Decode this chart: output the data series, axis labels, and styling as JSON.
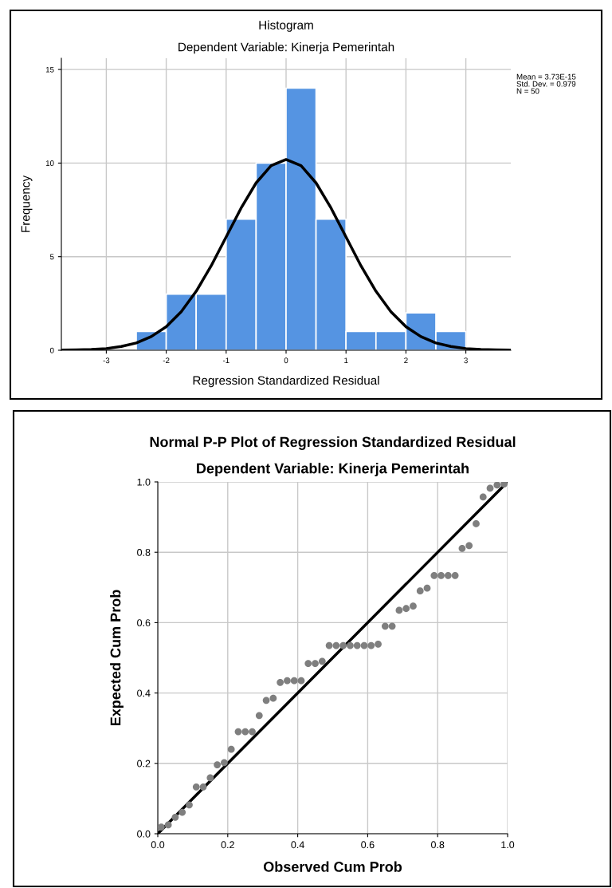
{
  "chart_data": [
    {
      "type": "histogram",
      "title": "Histogram",
      "subtitle": "Dependent Variable: Kinerja Pemerintah",
      "xlabel": "Regression Standardized Residual",
      "ylabel": "Frequency",
      "bins": [
        -2.5,
        -2.0,
        -1.5,
        -1.0,
        -0.5,
        0.0,
        0.5,
        1.0,
        1.5,
        2.0,
        2.5,
        3.0
      ],
      "values": [
        1,
        3,
        3,
        7,
        10,
        14,
        7,
        1,
        1,
        2,
        1
      ],
      "color": "#5594e2",
      "series": [
        {
          "type": "line",
          "color": "#000000",
          "x": [
            -3.75,
            -3.5,
            -3.25,
            -3.0,
            -2.75,
            -2.5,
            -2.25,
            -2.0,
            -1.75,
            -1.5,
            -1.25,
            -1.0,
            -0.75,
            -0.5,
            -0.25,
            0.0,
            0.25,
            0.5,
            0.75,
            1.0,
            1.25,
            1.5,
            1.75,
            2.0,
            2.25,
            2.5,
            2.75,
            3.0,
            3.25,
            3.5,
            3.75
          ],
          "values": [
            0.01,
            0.02,
            0.04,
            0.09,
            0.2,
            0.39,
            0.73,
            1.26,
            2.06,
            3.15,
            4.51,
            6.05,
            7.6,
            8.94,
            9.86,
            10.19,
            9.86,
            8.94,
            7.6,
            6.05,
            4.51,
            3.15,
            2.06,
            1.26,
            0.73,
            0.39,
            0.2,
            0.09,
            0.04,
            0.02,
            0.01
          ]
        }
      ],
      "xlim": [
        -3.75,
        3.75
      ],
      "ylim": [
        0,
        15.6
      ],
      "xticks": [
        -3,
        -2,
        -1,
        0,
        1,
        2,
        3
      ],
      "yticks": [
        0,
        5,
        10,
        15
      ],
      "grid": true,
      "annotations": [
        "Mean = 3.73E-15",
        "Std. Dev. = 0.979",
        "N = 50"
      ]
    },
    {
      "type": "scatter",
      "title": "Normal P-P Plot of Regression Standardized Residual",
      "subtitle": "Dependent Variable: Kinerja Pemerintah",
      "xlabel": "Observed Cum Prob",
      "ylabel": "Expected Cum Prob",
      "series": [
        {
          "type": "scatter",
          "color": "#7f7f7f",
          "marker": "circle",
          "x": [
            0.01,
            0.03,
            0.05,
            0.07,
            0.09,
            0.11,
            0.13,
            0.15,
            0.17,
            0.19,
            0.21,
            0.23,
            0.25,
            0.27,
            0.29,
            0.31,
            0.33,
            0.35,
            0.37,
            0.39,
            0.41,
            0.43,
            0.45,
            0.47,
            0.49,
            0.51,
            0.53,
            0.55,
            0.57,
            0.59,
            0.61,
            0.63,
            0.65,
            0.67,
            0.69,
            0.71,
            0.73,
            0.75,
            0.77,
            0.79,
            0.81,
            0.83,
            0.85,
            0.87,
            0.89,
            0.91,
            0.93,
            0.95,
            0.97,
            0.99
          ],
          "values": [
            0.019,
            0.025,
            0.047,
            0.061,
            0.082,
            0.133,
            0.133,
            0.159,
            0.196,
            0.202,
            0.24,
            0.29,
            0.29,
            0.29,
            0.336,
            0.379,
            0.385,
            0.43,
            0.435,
            0.435,
            0.435,
            0.484,
            0.484,
            0.49,
            0.535,
            0.535,
            0.535,
            0.535,
            0.535,
            0.535,
            0.535,
            0.539,
            0.59,
            0.59,
            0.635,
            0.64,
            0.647,
            0.69,
            0.698,
            0.734,
            0.734,
            0.734,
            0.734,
            0.811,
            0.819,
            0.881,
            0.957,
            0.982,
            0.991,
            0.994
          ]
        },
        {
          "type": "line",
          "color": "#000000",
          "x": [
            0,
            1
          ],
          "values": [
            0,
            1
          ]
        }
      ],
      "xlim": [
        0,
        1
      ],
      "ylim": [
        0,
        1
      ],
      "xticks": [
        {
          "value": 0,
          "label": "0.0"
        },
        0.2,
        0.4,
        0.6,
        0.8,
        {
          "value": 1,
          "label": "1.0"
        }
      ],
      "yticks": [
        {
          "value": 0,
          "label": "0.0"
        },
        0.2,
        0.4,
        0.6,
        0.8,
        {
          "value": 1,
          "label": "1.0"
        }
      ],
      "grid": true
    }
  ]
}
